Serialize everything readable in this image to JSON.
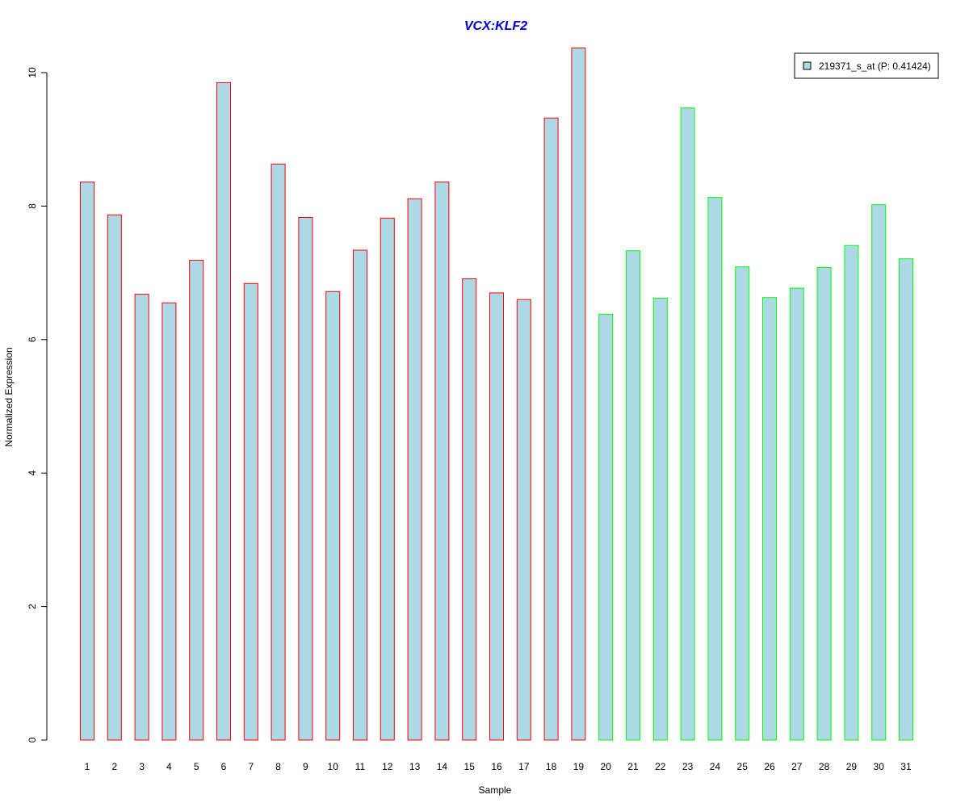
{
  "chart_data": {
    "type": "bar",
    "title": "VCX:KLF2",
    "xlabel": "Sample",
    "ylabel": "Normalized Expression",
    "ylim": [
      0,
      10.4
    ],
    "yticks": [
      "0",
      "2",
      "4",
      "6",
      "8",
      "10"
    ],
    "categories": [
      "1",
      "2",
      "3",
      "4",
      "5",
      "6",
      "7",
      "8",
      "9",
      "10",
      "11",
      "12",
      "13",
      "14",
      "15",
      "16",
      "17",
      "18",
      "19",
      "20",
      "21",
      "22",
      "23",
      "24",
      "25",
      "26",
      "27",
      "28",
      "29",
      "30",
      "31"
    ],
    "series": [
      {
        "name": "219371_s_at (P: 0.41424)",
        "fill": "#add8e6",
        "values": [
          8.36,
          7.87,
          6.68,
          6.55,
          7.19,
          9.85,
          6.84,
          8.63,
          7.83,
          6.72,
          7.34,
          7.82,
          8.11,
          8.36,
          6.91,
          6.7,
          6.6,
          9.32,
          10.37,
          6.38,
          7.33,
          6.62,
          9.47,
          8.13,
          7.09,
          6.63,
          6.77,
          7.08,
          7.41,
          8.02,
          7.21
        ]
      }
    ],
    "group_colors": {
      "group1": "#ff0000",
      "group2": "#00ff00"
    },
    "group_split_after_index": 18,
    "legend_position": "top-right",
    "grid": false
  }
}
